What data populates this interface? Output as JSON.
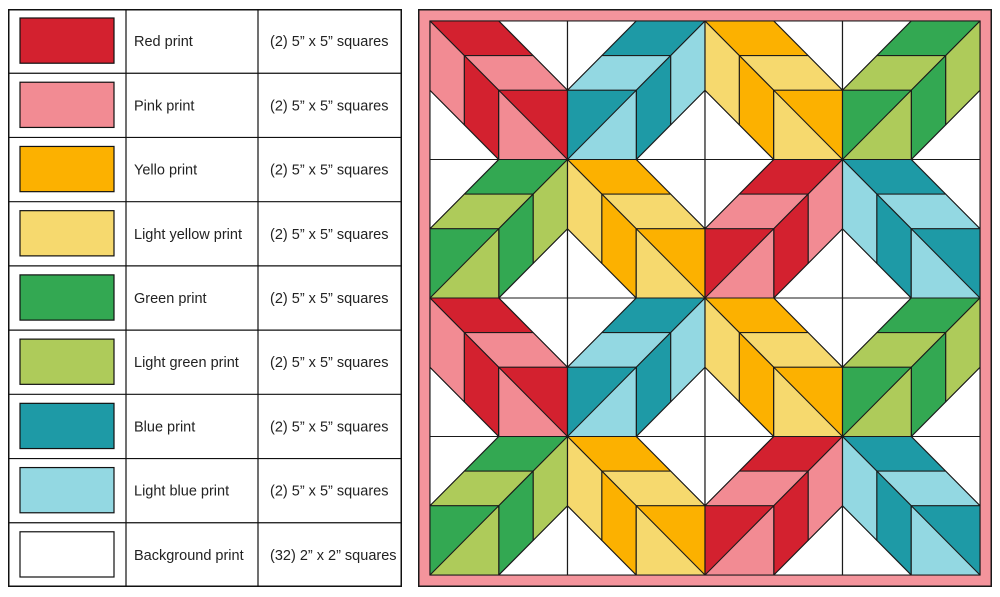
{
  "fabrics": [
    {
      "name": "Red print",
      "cut": "(2) 5” x 5” squares",
      "color": "#d3212f"
    },
    {
      "name": "Pink print",
      "cut": "(2) 5” x 5” squares",
      "color": "#f28b93"
    },
    {
      "name": "Yello print",
      "cut": "(2) 5” x 5” squares",
      "color": "#fcb100"
    },
    {
      "name": "Light yellow print",
      "cut": "(2) 5” x 5” squares",
      "color": "#f6d96e"
    },
    {
      "name": "Green print",
      "cut": "(2) 5” x 5” squares",
      "color": "#33a852"
    },
    {
      "name": "Light green print",
      "cut": "(2) 5” x 5” squares",
      "color": "#aecb5a"
    },
    {
      "name": "Blue print",
      "cut": "(2) 5” x 5” squares",
      "color": "#1e9aa6"
    },
    {
      "name": "Light blue print",
      "cut": "(2) 5” x 5” squares",
      "color": "#93d8e2"
    },
    {
      "name": "Background print",
      "cut": "(32) 2” x 2” squares",
      "color": "#ffffff"
    }
  ],
  "quilt": {
    "border_color": "#f4949c",
    "outline_color": "#1a1a1a",
    "grid_size": 4,
    "block_layout": [
      [
        "red",
        "blue",
        "yellow",
        "green"
      ],
      [
        "green",
        "yellow",
        "red",
        "blue"
      ],
      [
        "red",
        "blue",
        "yellow",
        "green"
      ],
      [
        "green",
        "yellow",
        "red",
        "blue"
      ]
    ],
    "block_colors": {
      "red": {
        "a": "#d3212f",
        "b": "#f28b93"
      },
      "blue": {
        "a": "#1e9aa6",
        "b": "#93d8e2"
      },
      "yellow": {
        "a": "#fcb100",
        "b": "#f6d96e"
      },
      "green": {
        "a": "#33a852",
        "b": "#aecb5a"
      }
    }
  }
}
